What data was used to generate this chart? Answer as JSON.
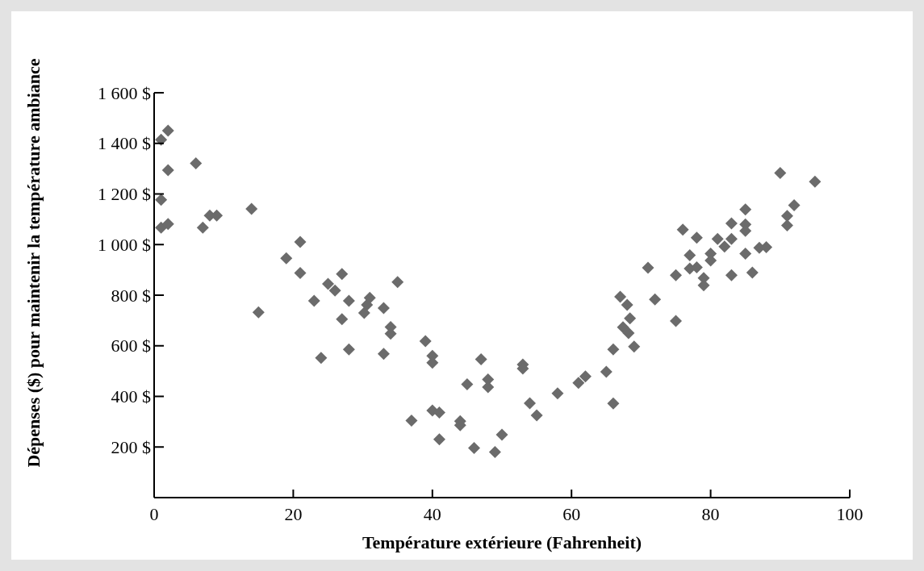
{
  "chart_data": {
    "type": "scatter",
    "xlabel": "Température extérieure (Fahrenheit)",
    "ylabel": "Dépenses ($) pour maintenir la température ambiance",
    "xlim": [
      0,
      100
    ],
    "xticks": [
      0,
      20,
      40,
      60,
      80,
      100
    ],
    "ylim": [
      0,
      1600
    ],
    "yticks": [
      {
        "value": 200,
        "label": "200 $"
      },
      {
        "value": 400,
        "label": "400 $"
      },
      {
        "value": 600,
        "label": "600 $"
      },
      {
        "value": 800,
        "label": "800 $"
      },
      {
        "value": 1000,
        "label": "1 000 $"
      },
      {
        "value": 1200,
        "label": "1 200 $"
      },
      {
        "value": 1400,
        "label": "1 400 $"
      },
      {
        "value": 1600,
        "label": "1 600 $"
      }
    ],
    "grid": false,
    "marker": "diamond",
    "series": [
      {
        "color": "#6b6b6b",
        "x": [
          2,
          1,
          2,
          6,
          1,
          1,
          2,
          7,
          8,
          9,
          14,
          15,
          21,
          19,
          21,
          25,
          26,
          27,
          23,
          28,
          27,
          31,
          30.6,
          30.2,
          33,
          35,
          34,
          34,
          28,
          24,
          33,
          39,
          40,
          40,
          47,
          45,
          48,
          48,
          53,
          53,
          54,
          37,
          40,
          41,
          44,
          44,
          41,
          50,
          46,
          49,
          55,
          90,
          95,
          92,
          91,
          91,
          85,
          83,
          85,
          85,
          76,
          78,
          81,
          83,
          82,
          85,
          87,
          88,
          77,
          80,
          80,
          77,
          78,
          75,
          83,
          86,
          71,
          79,
          79,
          72,
          75,
          67,
          68,
          68.4,
          67.4,
          68.2,
          69,
          66,
          65,
          62,
          61,
          66,
          58
        ],
        "values": [
          1450,
          1414,
          1294,
          1321,
          1177,
          1067,
          1081,
          1067,
          1115,
          1115,
          1141,
          732,
          1010,
          946,
          888,
          845,
          818,
          884,
          778,
          778,
          705,
          790,
          762,
          730,
          749,
          852,
          674,
          648,
          586,
          552,
          568,
          618,
          560,
          533,
          547,
          448,
          467,
          437,
          526,
          510,
          373,
          304,
          344,
          336,
          302,
          286,
          230,
          249,
          196,
          180,
          325,
          1283,
          1249,
          1155,
          1113,
          1076,
          1139,
          1084,
          1080,
          1054,
          1059,
          1027,
          1022,
          1022,
          992,
          964,
          987,
          990,
          958,
          964,
          937,
          905,
          910,
          879,
          879,
          889,
          908,
          868,
          839,
          783,
          698,
          794,
          762,
          708,
          673,
          650,
          597,
          586,
          497,
          479,
          453,
          372,
          412
        ]
      }
    ]
  }
}
